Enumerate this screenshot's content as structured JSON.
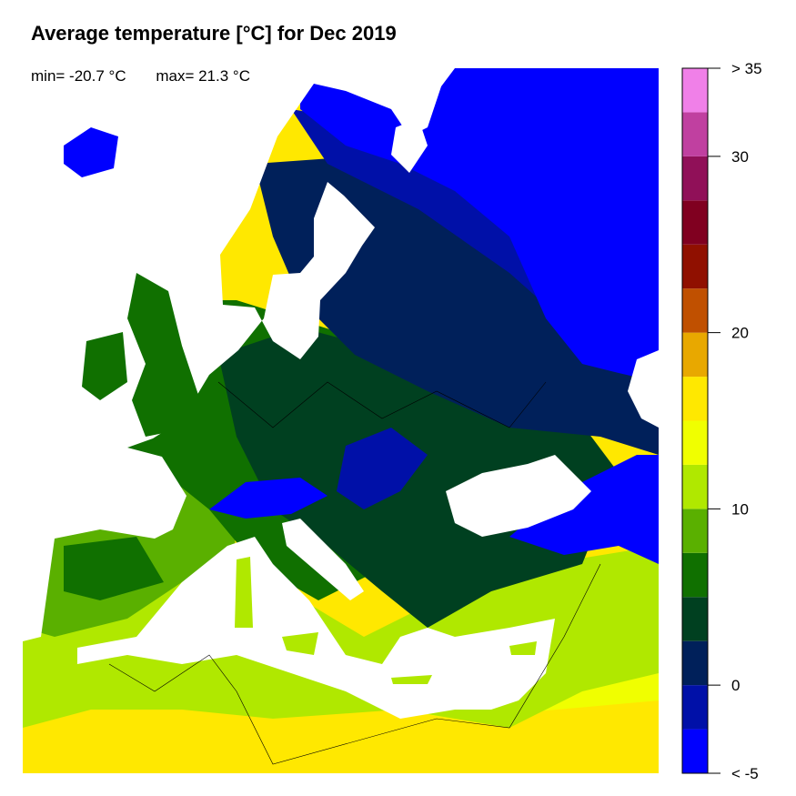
{
  "title": "Average temperature [°C] for Dec 2019",
  "stats": {
    "min_label": "min= -20.7 °C",
    "max_label": "max= 21.3 °C"
  },
  "legend": {
    "range": [
      -5,
      35
    ],
    "bin_width": 2.5,
    "colors": [
      "#0000ff",
      "#0010a8",
      "#00205a",
      "#004020",
      "#107000",
      "#5ab000",
      "#b0e800",
      "#f0ff00",
      "#ffe800",
      "#e8a800",
      "#c05000",
      "#901000",
      "#800020",
      "#901058",
      "#c040a0",
      "#f080e8"
    ],
    "ticks": [
      {
        "value": -5,
        "label": "< -5"
      },
      {
        "value": 0,
        "label": "0"
      },
      {
        "value": 10,
        "label": "10"
      },
      {
        "value": 20,
        "label": "20"
      },
      {
        "value": 30,
        "label": "30"
      },
      {
        "value": 35,
        "label": "> 35"
      }
    ]
  },
  "map": {
    "sea_color": "#ffffff",
    "border_color": "#000000"
  }
}
